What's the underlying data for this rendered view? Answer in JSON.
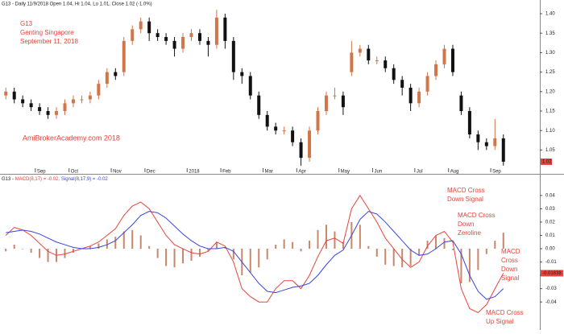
{
  "chart_data": [
    {
      "type": "candlestick",
      "title": "G13 - Daily 11/9/2018 Open 1.04, Hi 1.04, Lo 1.01, Close 1.02 (-1.0%)",
      "annotations": [
        [
          "G13",
          "Genting Singapore",
          "September 11, 2018"
        ],
        [
          "AmiBrokerAcademy.com  2018"
        ]
      ],
      "categories": [
        null,
        null,
        null,
        null,
        "Sep",
        null,
        null,
        null,
        "Oct",
        null,
        null,
        null,
        null,
        "Nov",
        null,
        null,
        null,
        "Dec",
        null,
        null,
        null,
        null,
        "2018",
        null,
        null,
        null,
        "Feb",
        null,
        null,
        null,
        null,
        "Mar",
        null,
        null,
        null,
        "Apr",
        null,
        null,
        null,
        null,
        "May",
        null,
        null,
        null,
        "Jun",
        null,
        null,
        null,
        null,
        "Jul",
        null,
        null,
        null,
        "Aug",
        null,
        null,
        null,
        null,
        "Sep",
        null
      ],
      "open": [
        1.19,
        1.2,
        1.18,
        1.17,
        1.16,
        1.15,
        1.14,
        1.15,
        1.17,
        1.18,
        1.18,
        1.19,
        1.22,
        1.25,
        1.25,
        1.33,
        1.36,
        1.38,
        1.35,
        1.34,
        1.33,
        1.31,
        1.34,
        1.35,
        1.33,
        1.32,
        1.39,
        1.33,
        1.25,
        1.24,
        1.19,
        1.14,
        1.11,
        1.1,
        1.1,
        1.07,
        1.03,
        1.1,
        1.15,
        1.19,
        1.19,
        1.25,
        1.3,
        1.31,
        1.28,
        1.28,
        1.26,
        1.23,
        1.21,
        1.17,
        1.2,
        1.24,
        1.27,
        1.31,
        1.19,
        1.15,
        1.09,
        1.07,
        1.06,
        1.08
      ],
      "high": [
        1.21,
        1.21,
        1.19,
        1.18,
        1.17,
        1.16,
        1.16,
        1.18,
        1.19,
        1.19,
        1.2,
        1.23,
        1.26,
        1.26,
        1.34,
        1.37,
        1.39,
        1.39,
        1.36,
        1.35,
        1.34,
        1.35,
        1.36,
        1.36,
        1.34,
        1.41,
        1.4,
        1.34,
        1.26,
        1.25,
        1.2,
        1.15,
        1.12,
        1.11,
        1.11,
        1.08,
        1.11,
        1.16,
        1.2,
        1.21,
        1.2,
        1.33,
        1.32,
        1.32,
        1.29,
        1.29,
        1.27,
        1.24,
        1.22,
        1.21,
        1.25,
        1.28,
        1.32,
        1.32,
        1.2,
        1.16,
        1.1,
        1.08,
        1.13,
        1.09
      ],
      "low": [
        1.18,
        1.17,
        1.16,
        1.15,
        1.14,
        1.13,
        1.13,
        1.14,
        1.16,
        1.17,
        1.17,
        1.18,
        1.21,
        1.23,
        1.24,
        1.32,
        1.35,
        1.33,
        1.33,
        1.32,
        1.29,
        1.3,
        1.33,
        1.32,
        1.29,
        1.31,
        1.31,
        1.23,
        1.22,
        1.18,
        1.13,
        1.1,
        1.09,
        1.09,
        1.06,
        1.01,
        1.02,
        1.09,
        1.14,
        1.18,
        1.14,
        1.24,
        1.29,
        1.27,
        1.27,
        1.25,
        1.22,
        1.19,
        1.15,
        1.16,
        1.19,
        1.23,
        1.26,
        1.24,
        1.14,
        1.08,
        1.05,
        1.05,
        1.05,
        1.01
      ],
      "close": [
        1.2,
        1.18,
        1.17,
        1.16,
        1.15,
        1.14,
        1.15,
        1.17,
        1.18,
        1.18,
        1.19,
        1.22,
        1.25,
        1.24,
        1.33,
        1.36,
        1.38,
        1.35,
        1.34,
        1.33,
        1.31,
        1.34,
        1.35,
        1.33,
        1.32,
        1.39,
        1.33,
        1.25,
        1.24,
        1.19,
        1.14,
        1.11,
        1.1,
        1.1,
        1.07,
        1.03,
        1.1,
        1.15,
        1.19,
        1.19,
        1.16,
        1.3,
        1.31,
        1.28,
        1.28,
        1.26,
        1.23,
        1.21,
        1.17,
        1.2,
        1.24,
        1.27,
        1.31,
        1.25,
        1.15,
        1.09,
        1.07,
        1.06,
        1.08,
        1.02
      ],
      "up_color": "#d0764a",
      "down_color": "#111111",
      "ylim": [
        1.0,
        1.42
      ],
      "yticks": [
        1.05,
        {
          "value": 1.1,
          "label": "1.10"
        },
        1.15,
        {
          "value": 1.2,
          "label": "1.20"
        },
        1.25,
        {
          "value": 1.3,
          "label": "1.30"
        },
        1.35,
        {
          "value": 1.4,
          "label": "1.40"
        }
      ]
    },
    {
      "type": "macd",
      "title": "G13 -",
      "series": [
        {
          "name": "MACD(8,17) = -0.02,",
          "color": "#e8433a",
          "values": [
            0.01,
            0.016,
            0.014,
            0.01,
            0.004,
            -0.002,
            -0.005,
            -0.004,
            -0.002,
            0.0,
            0.002,
            0.005,
            0.01,
            0.015,
            0.025,
            0.032,
            0.035,
            0.03,
            0.02,
            0.01,
            0.003,
            0.0,
            -0.003,
            -0.004,
            -0.002,
            0.005,
            0.002,
            -0.01,
            -0.03,
            -0.036,
            -0.04,
            -0.04,
            -0.03,
            -0.024,
            -0.024,
            -0.03,
            -0.02,
            -0.006,
            0.006,
            0.008,
            0.004,
            0.03,
            0.04,
            0.03,
            0.02,
            0.008,
            0.0,
            -0.008,
            -0.014,
            -0.01,
            0.002,
            0.01,
            0.013,
            0.005,
            -0.03,
            -0.045,
            -0.048,
            -0.042,
            -0.03,
            -0.01838
          ]
        },
        {
          "name": "Signal(8,17,9) = -0.02",
          "color": "#3a46e0",
          "values": [
            0.012,
            0.013,
            0.014,
            0.013,
            0.011,
            0.008,
            0.005,
            0.003,
            0.001,
            0.0,
            0.0,
            0.001,
            0.003,
            0.006,
            0.012,
            0.018,
            0.025,
            0.028,
            0.027,
            0.023,
            0.017,
            0.011,
            0.006,
            0.002,
            0.0,
            0.0,
            0.001,
            -0.002,
            -0.01,
            -0.018,
            -0.026,
            -0.032,
            -0.033,
            -0.031,
            -0.029,
            -0.028,
            -0.026,
            -0.02,
            -0.012,
            -0.005,
            -0.001,
            0.01,
            0.022,
            0.028,
            0.026,
            0.02,
            0.013,
            0.006,
            -0.001,
            -0.005,
            -0.004,
            0.0,
            0.005,
            0.006,
            -0.004,
            -0.02,
            -0.032,
            -0.038,
            -0.036,
            -0.03
          ]
        }
      ],
      "histogram": {
        "color": "#c9866a",
        "values": [
          -0.002,
          0.003,
          0.0,
          -0.003,
          -0.007,
          -0.01,
          -0.01,
          -0.007,
          -0.003,
          0.0,
          0.002,
          0.004,
          0.007,
          0.009,
          0.013,
          0.014,
          0.01,
          0.002,
          -0.007,
          -0.013,
          -0.014,
          -0.011,
          -0.009,
          -0.006,
          -0.002,
          0.005,
          0.001,
          -0.008,
          -0.02,
          -0.018,
          -0.014,
          -0.008,
          0.003,
          0.007,
          0.005,
          -0.002,
          0.006,
          0.014,
          0.018,
          0.013,
          0.005,
          0.02,
          0.018,
          0.002,
          -0.006,
          -0.012,
          -0.013,
          -0.014,
          -0.013,
          -0.005,
          0.006,
          0.01,
          0.008,
          -0.001,
          -0.026,
          -0.025,
          -0.016,
          -0.004,
          0.006,
          0.012
        ]
      },
      "annotations": [
        [
          "MACD Cross",
          "Down Signal"
        ],
        [
          "MACD Cross",
          "Down",
          "Zeroline"
        ],
        [
          "MACD",
          "Cross",
          "Down",
          "Signal"
        ],
        [
          "MACD Cross",
          "Up Signal"
        ]
      ],
      "ylim": [
        -0.058,
        0.055
      ],
      "yticks": [
        0.04,
        0.03,
        0.02,
        0.01,
        {
          "value": 0,
          "label": "0.00"
        },
        -0.01,
        -0.02,
        -0.03,
        -0.04
      ]
    }
  ]
}
